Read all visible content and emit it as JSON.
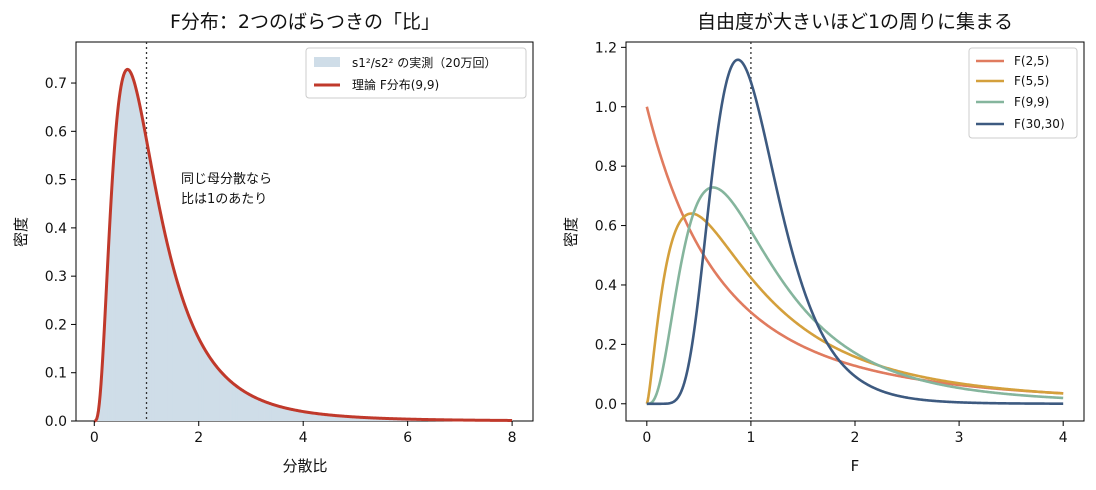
{
  "chart_data": [
    {
      "type": "area",
      "title": "F分布：2つのばらつきの「比」",
      "xlabel": "分散比",
      "ylabel": "密度",
      "xlim": [
        -0.35,
        8.4
      ],
      "ylim": [
        0,
        0.785
      ],
      "xticks": [
        0,
        2,
        4,
        6,
        8
      ],
      "yticks": [
        0.0,
        0.1,
        0.2,
        0.3,
        0.4,
        0.5,
        0.6,
        0.7
      ],
      "ytick_labels": [
        "0.0",
        "0.1",
        "0.2",
        "0.3",
        "0.4",
        "0.5",
        "0.6",
        "0.7"
      ],
      "vline_x": 1,
      "legend_position": "upper right",
      "series": [
        {
          "name": "s1²/s2² の実測（20万回）",
          "kind": "histogram",
          "color": "#cfdde8",
          "d1": 9,
          "d2": 9,
          "x_range": [
            0,
            8
          ]
        },
        {
          "name": "理論 F分布(9,9)",
          "kind": "line",
          "color": "#c0392b",
          "d1": 9,
          "d2": 9,
          "x_range": [
            0,
            8
          ]
        }
      ],
      "annotation": {
        "lines": [
          "同じ母分散なら",
          "比は1のあたり"
        ],
        "x": 1.6,
        "y": 0.5
      }
    },
    {
      "type": "line",
      "title": "自由度が大きいほど1の周りに集まる",
      "xlabel": "F",
      "ylabel": "密度",
      "xlim": [
        -0.2,
        4.2
      ],
      "ylim": [
        -0.058,
        1.218
      ],
      "xticks": [
        0,
        1,
        2,
        3,
        4
      ],
      "yticks": [
        0.0,
        0.2,
        0.4,
        0.6,
        0.8,
        1.0,
        1.2
      ],
      "ytick_labels": [
        "0.0",
        "0.2",
        "0.4",
        "0.6",
        "0.8",
        "1.0",
        "1.2"
      ],
      "vline_x": 1,
      "legend_position": "upper right",
      "series": [
        {
          "name": "F(2,5)",
          "color": "#e07b5f",
          "d1": 2,
          "d2": 5,
          "x_range": [
            0,
            4
          ]
        },
        {
          "name": "F(5,5)",
          "color": "#d4a03c",
          "d1": 5,
          "d2": 5,
          "x_range": [
            0,
            4
          ]
        },
        {
          "name": "F(9,9)",
          "color": "#85b59d",
          "d1": 9,
          "d2": 9,
          "x_range": [
            0,
            4
          ]
        },
        {
          "name": "F(30,30)",
          "color": "#3d5a80",
          "d1": 30,
          "d2": 30,
          "x_range": [
            0,
            4
          ]
        }
      ]
    }
  ]
}
